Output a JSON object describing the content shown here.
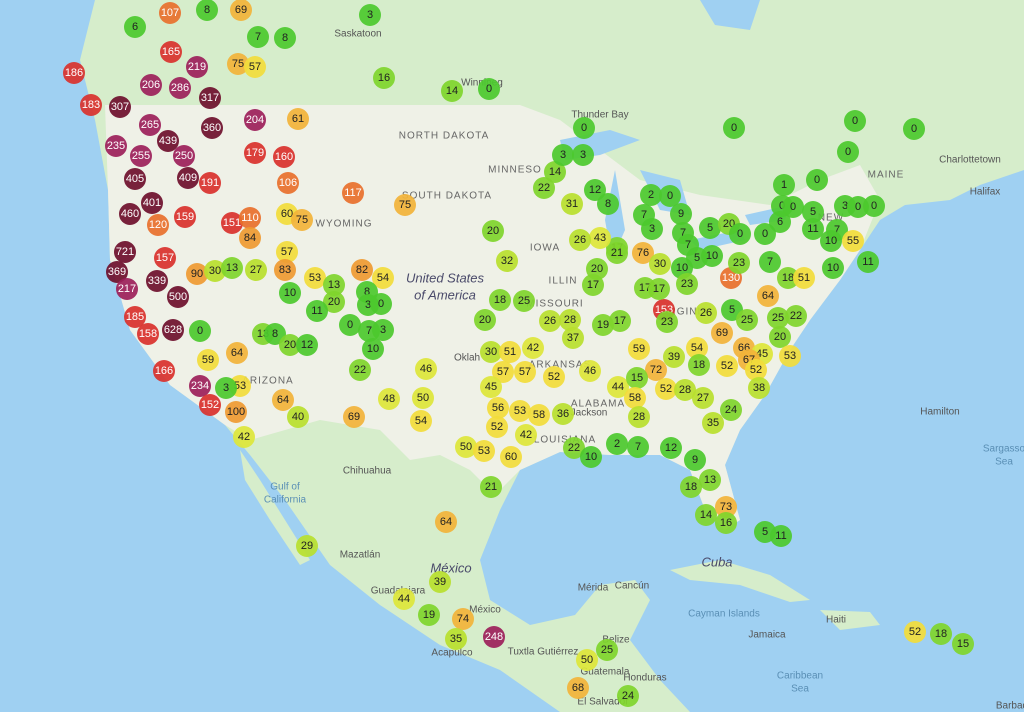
{
  "places": [
    "Saskatoon",
    "Winnipeg",
    "Thunder Bay",
    "NORTH DAKOTA",
    "SOUTH DAKOTA",
    "MINNESO",
    "WYOMING",
    "IOWA",
    "United States",
    "of America",
    "MAINE",
    "Charlottetown",
    "Halifax",
    "Hamilton",
    "Sargasso",
    "Sea",
    "Chihuahua",
    "Gulf of",
    "California",
    "Mazatlán",
    "México",
    "Guadalajara",
    "México",
    "Acapulco",
    "Tuxtla Gutiérrez",
    "Mérida",
    "Cancún",
    "Cuba",
    "Cayman Islands",
    "Jamaica",
    "Haiti",
    "Caribbean",
    "Sea",
    "Honduras",
    "Barbad",
    "Jackson",
    "Oklah",
    "ALABAMA",
    "ILLIN",
    "MISSOURI",
    "ARKANSAS",
    "LOUISIANA",
    "ARIZONA",
    "VIRGINIA",
    "NEW",
    "El Salvador",
    "Guatemala",
    "Belize"
  ],
  "markers": [
    6,
    107,
    8,
    69,
    7,
    8,
    3,
    75,
    57,
    16,
    14,
    0,
    165,
    219,
    206,
    286,
    317,
    186,
    183,
    307,
    265,
    360,
    204,
    439,
    235,
    255,
    250,
    179,
    160,
    61,
    409,
    191,
    405,
    106,
    117,
    75,
    401,
    460,
    120,
    159,
    151,
    110,
    60,
    75,
    84,
    721,
    157,
    369,
    339,
    217,
    90,
    30,
    13,
    27,
    57,
    83,
    53,
    82,
    54,
    10,
    13,
    20,
    8,
    3,
    0,
    11,
    0,
    7,
    3,
    500,
    185,
    158,
    628,
    0,
    13,
    8,
    20,
    12,
    10,
    166,
    59,
    64,
    22,
    234,
    53,
    3,
    152,
    100,
    64,
    40,
    69,
    48,
    50,
    54,
    46,
    42,
    29,
    20,
    32,
    18,
    25,
    20,
    26,
    28,
    37,
    19,
    17,
    17,
    20,
    17,
    43,
    26,
    31,
    22,
    14,
    3,
    3,
    0,
    12,
    8,
    2,
    0,
    7,
    3,
    9,
    7,
    7,
    5,
    10,
    5,
    20,
    0,
    0,
    6,
    1,
    0,
    0,
    0,
    5,
    3,
    0,
    0,
    11,
    7,
    55,
    10,
    7,
    18,
    51,
    10,
    11,
    21,
    76,
    30,
    10,
    130,
    23,
    64,
    23,
    153,
    23,
    17,
    17,
    26,
    5,
    25,
    25,
    22,
    20,
    69,
    54,
    66,
    45,
    67,
    52,
    52,
    53,
    38,
    39,
    18,
    59,
    72,
    52,
    28,
    27,
    44,
    15,
    58,
    28,
    24,
    35,
    30,
    51,
    42,
    57,
    57,
    52,
    46,
    45,
    56,
    53,
    58,
    36,
    52,
    50,
    53,
    60,
    42,
    21,
    22,
    10,
    2,
    7,
    12,
    9,
    13,
    18,
    14,
    73,
    16,
    5,
    11,
    64,
    39,
    44,
    19,
    74,
    35,
    248,
    25,
    50,
    68,
    24,
    52,
    18,
    15,
    0,
    0,
    0,
    0
  ]
}
